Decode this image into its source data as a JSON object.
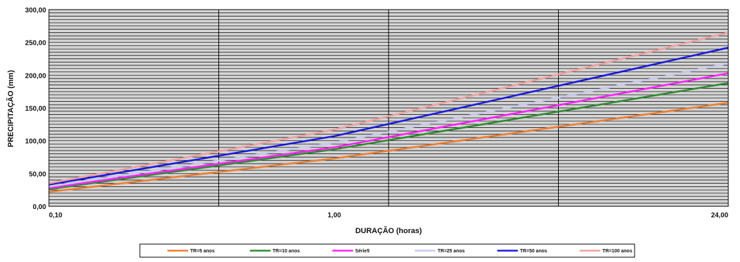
{
  "chart_data": {
    "type": "line",
    "title": "",
    "xlabel": "DURAÇÃO (horas)",
    "ylabel": "PRECIPITAÇÃO (mm)",
    "x_scale": "log",
    "x_ticks": [
      0.1,
      1,
      24
    ],
    "x_tick_labels": [
      "0,10",
      "1,00",
      "24,00"
    ],
    "ylim": [
      0,
      300
    ],
    "y_ticks": [
      0,
      50,
      100,
      150,
      200,
      250,
      300
    ],
    "y_tick_labels": [
      "0,00",
      "50,00",
      "100,00",
      "150,00",
      "200,00",
      "250,00",
      "300,00"
    ],
    "grid": true,
    "plot_background": "#d4d4d4",
    "legend_position": "bottom",
    "x": [
      0.1,
      1,
      24
    ],
    "series": [
      {
        "name": "TR=5 anos",
        "color": "#ed7d31",
        "values": [
          22,
          73,
          158
        ]
      },
      {
        "name": "TR=10 anos",
        "color": "#2e8b2e",
        "values": [
          26,
          87,
          188
        ]
      },
      {
        "name": "Série5",
        "color": "#ff20ff",
        "values": [
          28,
          90,
          203
        ]
      },
      {
        "name": "TR=25 anos",
        "color": "#c8c8f0",
        "values": [
          30,
          97,
          218
        ]
      },
      {
        "name": "TR=50 anos",
        "color": "#1a1adc",
        "values": [
          33,
          107,
          242
        ]
      },
      {
        "name": "TR=100 anos",
        "color": "#f0a0a0",
        "values": [
          35,
          117,
          265
        ]
      }
    ]
  }
}
